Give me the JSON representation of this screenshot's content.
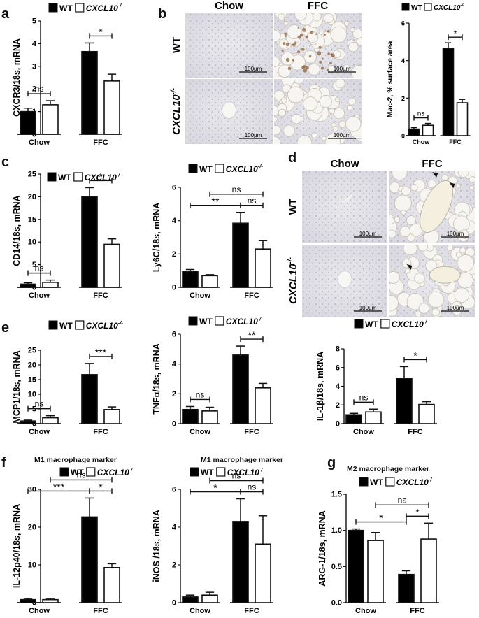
{
  "panel_labels": {
    "a": "a",
    "b": "b",
    "c": "c",
    "d": "d",
    "e": "e",
    "f": "f",
    "g": "g"
  },
  "legend": {
    "wt": "WT",
    "ko": "CXCL10",
    "ko_sup": "-/-"
  },
  "colors": {
    "wt": "#000000",
    "ko": "#ffffff",
    "stroke": "#111111"
  },
  "micrographs": {
    "b": {
      "cols": [
        "Chow",
        "FFC"
      ],
      "rows": [
        "WT",
        "CXCL10"
      ],
      "row_sup": "-/-",
      "scale": "100µm"
    },
    "d": {
      "cols": [
        "Chow",
        "FFC"
      ],
      "rows": [
        "WT",
        "CXCL10"
      ],
      "row_sup": "-/-",
      "scale": "100µm"
    }
  },
  "chart_data": [
    {
      "id": "a",
      "type": "bar",
      "categories": [
        "Chow",
        "FFC"
      ],
      "ylabel": "CXCR3/18s, mRNA",
      "ylim": [
        0,
        5
      ],
      "yticks": [
        0,
        1,
        2,
        3,
        4,
        5
      ],
      "series": [
        {
          "name": "WT",
          "values": [
            1.0,
            3.65
          ],
          "err": [
            0.15,
            0.38
          ]
        },
        {
          "name": "CXCL10-/-",
          "values": [
            1.3,
            2.35
          ],
          "err": [
            0.18,
            0.3
          ]
        }
      ],
      "annotations": [
        {
          "text": "ns",
          "from": [
            0,
            0
          ],
          "to": [
            0,
            1
          ]
        },
        {
          "text": "*",
          "from": [
            1,
            0
          ],
          "to": [
            1,
            1
          ]
        }
      ]
    },
    {
      "id": "b",
      "type": "bar",
      "categories": [
        "Chow",
        "FFC"
      ],
      "ylabel": "Mac-2, % surface area",
      "ylim": [
        0,
        6
      ],
      "yticks": [
        0,
        2,
        4,
        6
      ],
      "series": [
        {
          "name": "WT",
          "values": [
            0.35,
            4.65
          ],
          "err": [
            0.08,
            0.3
          ]
        },
        {
          "name": "CXCL10-/-",
          "values": [
            0.55,
            1.75
          ],
          "err": [
            0.1,
            0.18
          ]
        }
      ],
      "annotations": [
        {
          "text": "ns",
          "from": [
            0,
            0
          ],
          "to": [
            0,
            1
          ]
        },
        {
          "text": "*",
          "from": [
            1,
            0
          ],
          "to": [
            1,
            1
          ]
        }
      ]
    },
    {
      "id": "c1",
      "type": "bar",
      "categories": [
        "Chow",
        "FFC"
      ],
      "ylabel": "CD14/18s, mRNA",
      "ylim": [
        0,
        25
      ],
      "yticks": [
        0,
        5,
        10,
        15,
        20,
        25
      ],
      "series": [
        {
          "name": "WT",
          "values": [
            0.7,
            20.0
          ],
          "err": [
            0.3,
            2.0
          ]
        },
        {
          "name": "CXCL10-/-",
          "values": [
            1.1,
            9.5
          ],
          "err": [
            0.5,
            1.2
          ]
        }
      ],
      "annotations": [
        {
          "text": "ns",
          "from": [
            0,
            0
          ],
          "to": [
            0,
            1
          ]
        },
        {
          "text": "*",
          "from": [
            1,
            0
          ],
          "to": [
            1,
            1
          ]
        }
      ]
    },
    {
      "id": "c2",
      "type": "bar",
      "categories": [
        "Chow",
        "FFC"
      ],
      "ylabel": "Ly6C/18s, mRNA",
      "ylim": [
        0,
        6
      ],
      "yticks": [
        0,
        2,
        4,
        6
      ],
      "series": [
        {
          "name": "WT",
          "values": [
            0.95,
            3.85
          ],
          "err": [
            0.12,
            0.65
          ]
        },
        {
          "name": "CXCL10-/-",
          "values": [
            0.7,
            2.3
          ],
          "err": [
            0.06,
            0.5
          ]
        }
      ],
      "annotations": [
        {
          "text": "**",
          "from": [
            0,
            0
          ],
          "to": [
            1,
            0
          ]
        },
        {
          "text": "ns",
          "from": [
            1,
            0
          ],
          "to": [
            1,
            1
          ]
        },
        {
          "text": "ns",
          "from": [
            0,
            1
          ],
          "to": [
            1,
            1
          ]
        }
      ]
    },
    {
      "id": "e1",
      "type": "bar",
      "categories": [
        "Chow",
        "FFC"
      ],
      "ylabel": "MCP1/18s, mRNA",
      "ylim": [
        0,
        25
      ],
      "yticks": [
        0,
        5,
        10,
        15,
        20,
        25
      ],
      "series": [
        {
          "name": "WT",
          "values": [
            0.9,
            16.7
          ],
          "err": [
            0.3,
            3.8
          ]
        },
        {
          "name": "CXCL10-/-",
          "values": [
            2.0,
            4.8
          ],
          "err": [
            0.7,
            0.9
          ]
        }
      ],
      "annotations": [
        {
          "text": "ns",
          "from": [
            0,
            0
          ],
          "to": [
            0,
            1
          ]
        },
        {
          "text": "***",
          "from": [
            1,
            0
          ],
          "to": [
            1,
            1
          ]
        }
      ]
    },
    {
      "id": "e2",
      "type": "bar",
      "categories": [
        "Chow",
        "FFC"
      ],
      "ylabel": "TNFα/18s, mRNA",
      "ylim": [
        0,
        6
      ],
      "yticks": [
        0,
        2,
        4,
        6
      ],
      "series": [
        {
          "name": "WT",
          "values": [
            0.95,
            4.6
          ],
          "err": [
            0.2,
            0.6
          ]
        },
        {
          "name": "CXCL10-/-",
          "values": [
            0.85,
            2.4
          ],
          "err": [
            0.25,
            0.3
          ]
        }
      ],
      "annotations": [
        {
          "text": "ns",
          "from": [
            0,
            0
          ],
          "to": [
            0,
            1
          ]
        },
        {
          "text": "**",
          "from": [
            1,
            0
          ],
          "to": [
            1,
            1
          ]
        }
      ]
    },
    {
      "id": "e3",
      "type": "bar",
      "categories": [
        "Chow",
        "FFC"
      ],
      "ylabel": "IL-1β/18s, mRNA",
      "ylim": [
        0,
        8
      ],
      "yticks": [
        0,
        2,
        4,
        6,
        8
      ],
      "series": [
        {
          "name": "WT",
          "values": [
            0.95,
            4.85
          ],
          "err": [
            0.15,
            1.25
          ]
        },
        {
          "name": "CXCL10-/-",
          "values": [
            1.25,
            2.05
          ],
          "err": [
            0.3,
            0.3
          ]
        }
      ],
      "annotations": [
        {
          "text": "ns",
          "from": [
            0,
            0
          ],
          "to": [
            0,
            1
          ]
        },
        {
          "text": "*",
          "from": [
            1,
            0
          ],
          "to": [
            1,
            1
          ]
        }
      ]
    },
    {
      "id": "f1",
      "type": "bar",
      "title": "M1 macrophage marker",
      "categories": [
        "Chow",
        "FFC"
      ],
      "ylabel": "IL-12p40/18s, mRNA",
      "ylim": [
        0,
        30
      ],
      "yticks": [
        0,
        10,
        20,
        30
      ],
      "series": [
        {
          "name": "WT",
          "values": [
            0.8,
            22.7
          ],
          "err": [
            0.3,
            5.0
          ]
        },
        {
          "name": "CXCL10-/-",
          "values": [
            0.8,
            9.3
          ],
          "err": [
            0.3,
            1.0
          ]
        }
      ],
      "annotations": [
        {
          "text": "***",
          "from": [
            0,
            0
          ],
          "to": [
            1,
            0
          ]
        },
        {
          "text": "*",
          "from": [
            1,
            0
          ],
          "to": [
            1,
            1
          ]
        },
        {
          "text": "ns",
          "from": [
            0,
            1
          ],
          "to": [
            1,
            1
          ]
        }
      ]
    },
    {
      "id": "f2",
      "type": "bar",
      "title": "M1 macrophage marker",
      "categories": [
        "Chow",
        "FFC"
      ],
      "ylabel": "iNOS /18s, mRNA",
      "ylim": [
        0,
        6
      ],
      "yticks": [
        0,
        2,
        4,
        6
      ],
      "series": [
        {
          "name": "WT",
          "values": [
            0.3,
            4.3
          ],
          "err": [
            0.1,
            1.2
          ]
        },
        {
          "name": "CXCL10-/-",
          "values": [
            0.4,
            3.1
          ],
          "err": [
            0.15,
            1.5
          ]
        }
      ],
      "annotations": [
        {
          "text": "*",
          "from": [
            0,
            0
          ],
          "to": [
            1,
            0
          ]
        },
        {
          "text": "ns",
          "from": [
            1,
            0
          ],
          "to": [
            1,
            1
          ]
        },
        {
          "text": "ns",
          "from": [
            0,
            1
          ],
          "to": [
            1,
            1
          ]
        }
      ]
    },
    {
      "id": "g",
      "type": "bar",
      "title": "M2 macrophage marker",
      "categories": [
        "Chow",
        "FFC"
      ],
      "ylabel": "ARG-1/18s, mRNA",
      "ylim": [
        0,
        1.5
      ],
      "yticks": [
        "0.0",
        "0.5",
        "1.0",
        "1.5"
      ],
      "series": [
        {
          "name": "WT",
          "values": [
            1.0,
            0.39
          ],
          "err": [
            0.02,
            0.05
          ]
        },
        {
          "name": "CXCL10-/-",
          "values": [
            0.86,
            0.88
          ],
          "err": [
            0.11,
            0.22
          ]
        }
      ],
      "annotations": [
        {
          "text": "*",
          "from": [
            0,
            0
          ],
          "to": [
            1,
            0
          ]
        },
        {
          "text": "*",
          "from": [
            1,
            0
          ],
          "to": [
            1,
            1
          ]
        },
        {
          "text": "ns",
          "from": [
            0,
            1
          ],
          "to": [
            1,
            1
          ]
        }
      ]
    }
  ]
}
